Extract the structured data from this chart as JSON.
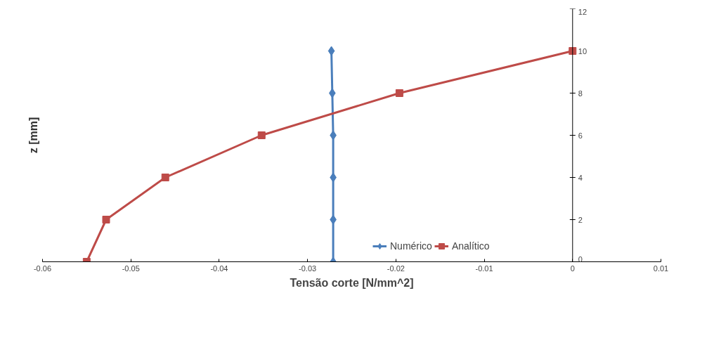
{
  "chart_data": {
    "type": "line",
    "xlabel": "Tensão corte [N/mm^2]",
    "ylabel": "z [mm]",
    "xlim": [
      -0.06,
      0.01
    ],
    "xticks": [
      -0.06,
      -0.05,
      -0.04,
      -0.03,
      -0.02,
      -0.01,
      0,
      0.01
    ],
    "ylim": [
      0,
      12
    ],
    "yticks": [
      0,
      2,
      4,
      6,
      8,
      10,
      12
    ],
    "grid": false,
    "legend": "bottom",
    "series": [
      {
        "name": "Numérico",
        "color": "#4a7ebb",
        "marker": "diamond",
        "x": [
          -0.0271,
          -0.0271,
          -0.0271,
          -0.0271,
          -0.0272,
          -0.0273
        ],
        "values": [
          0,
          2,
          4,
          6,
          8,
          10
        ]
      },
      {
        "name": "Analítico",
        "color": "#be4b48",
        "marker": "square",
        "x": [
          -0.055,
          -0.0528,
          -0.0461,
          -0.0352,
          -0.0196,
          0
        ],
        "values": [
          0,
          2,
          4,
          6,
          8,
          10
        ]
      }
    ]
  }
}
